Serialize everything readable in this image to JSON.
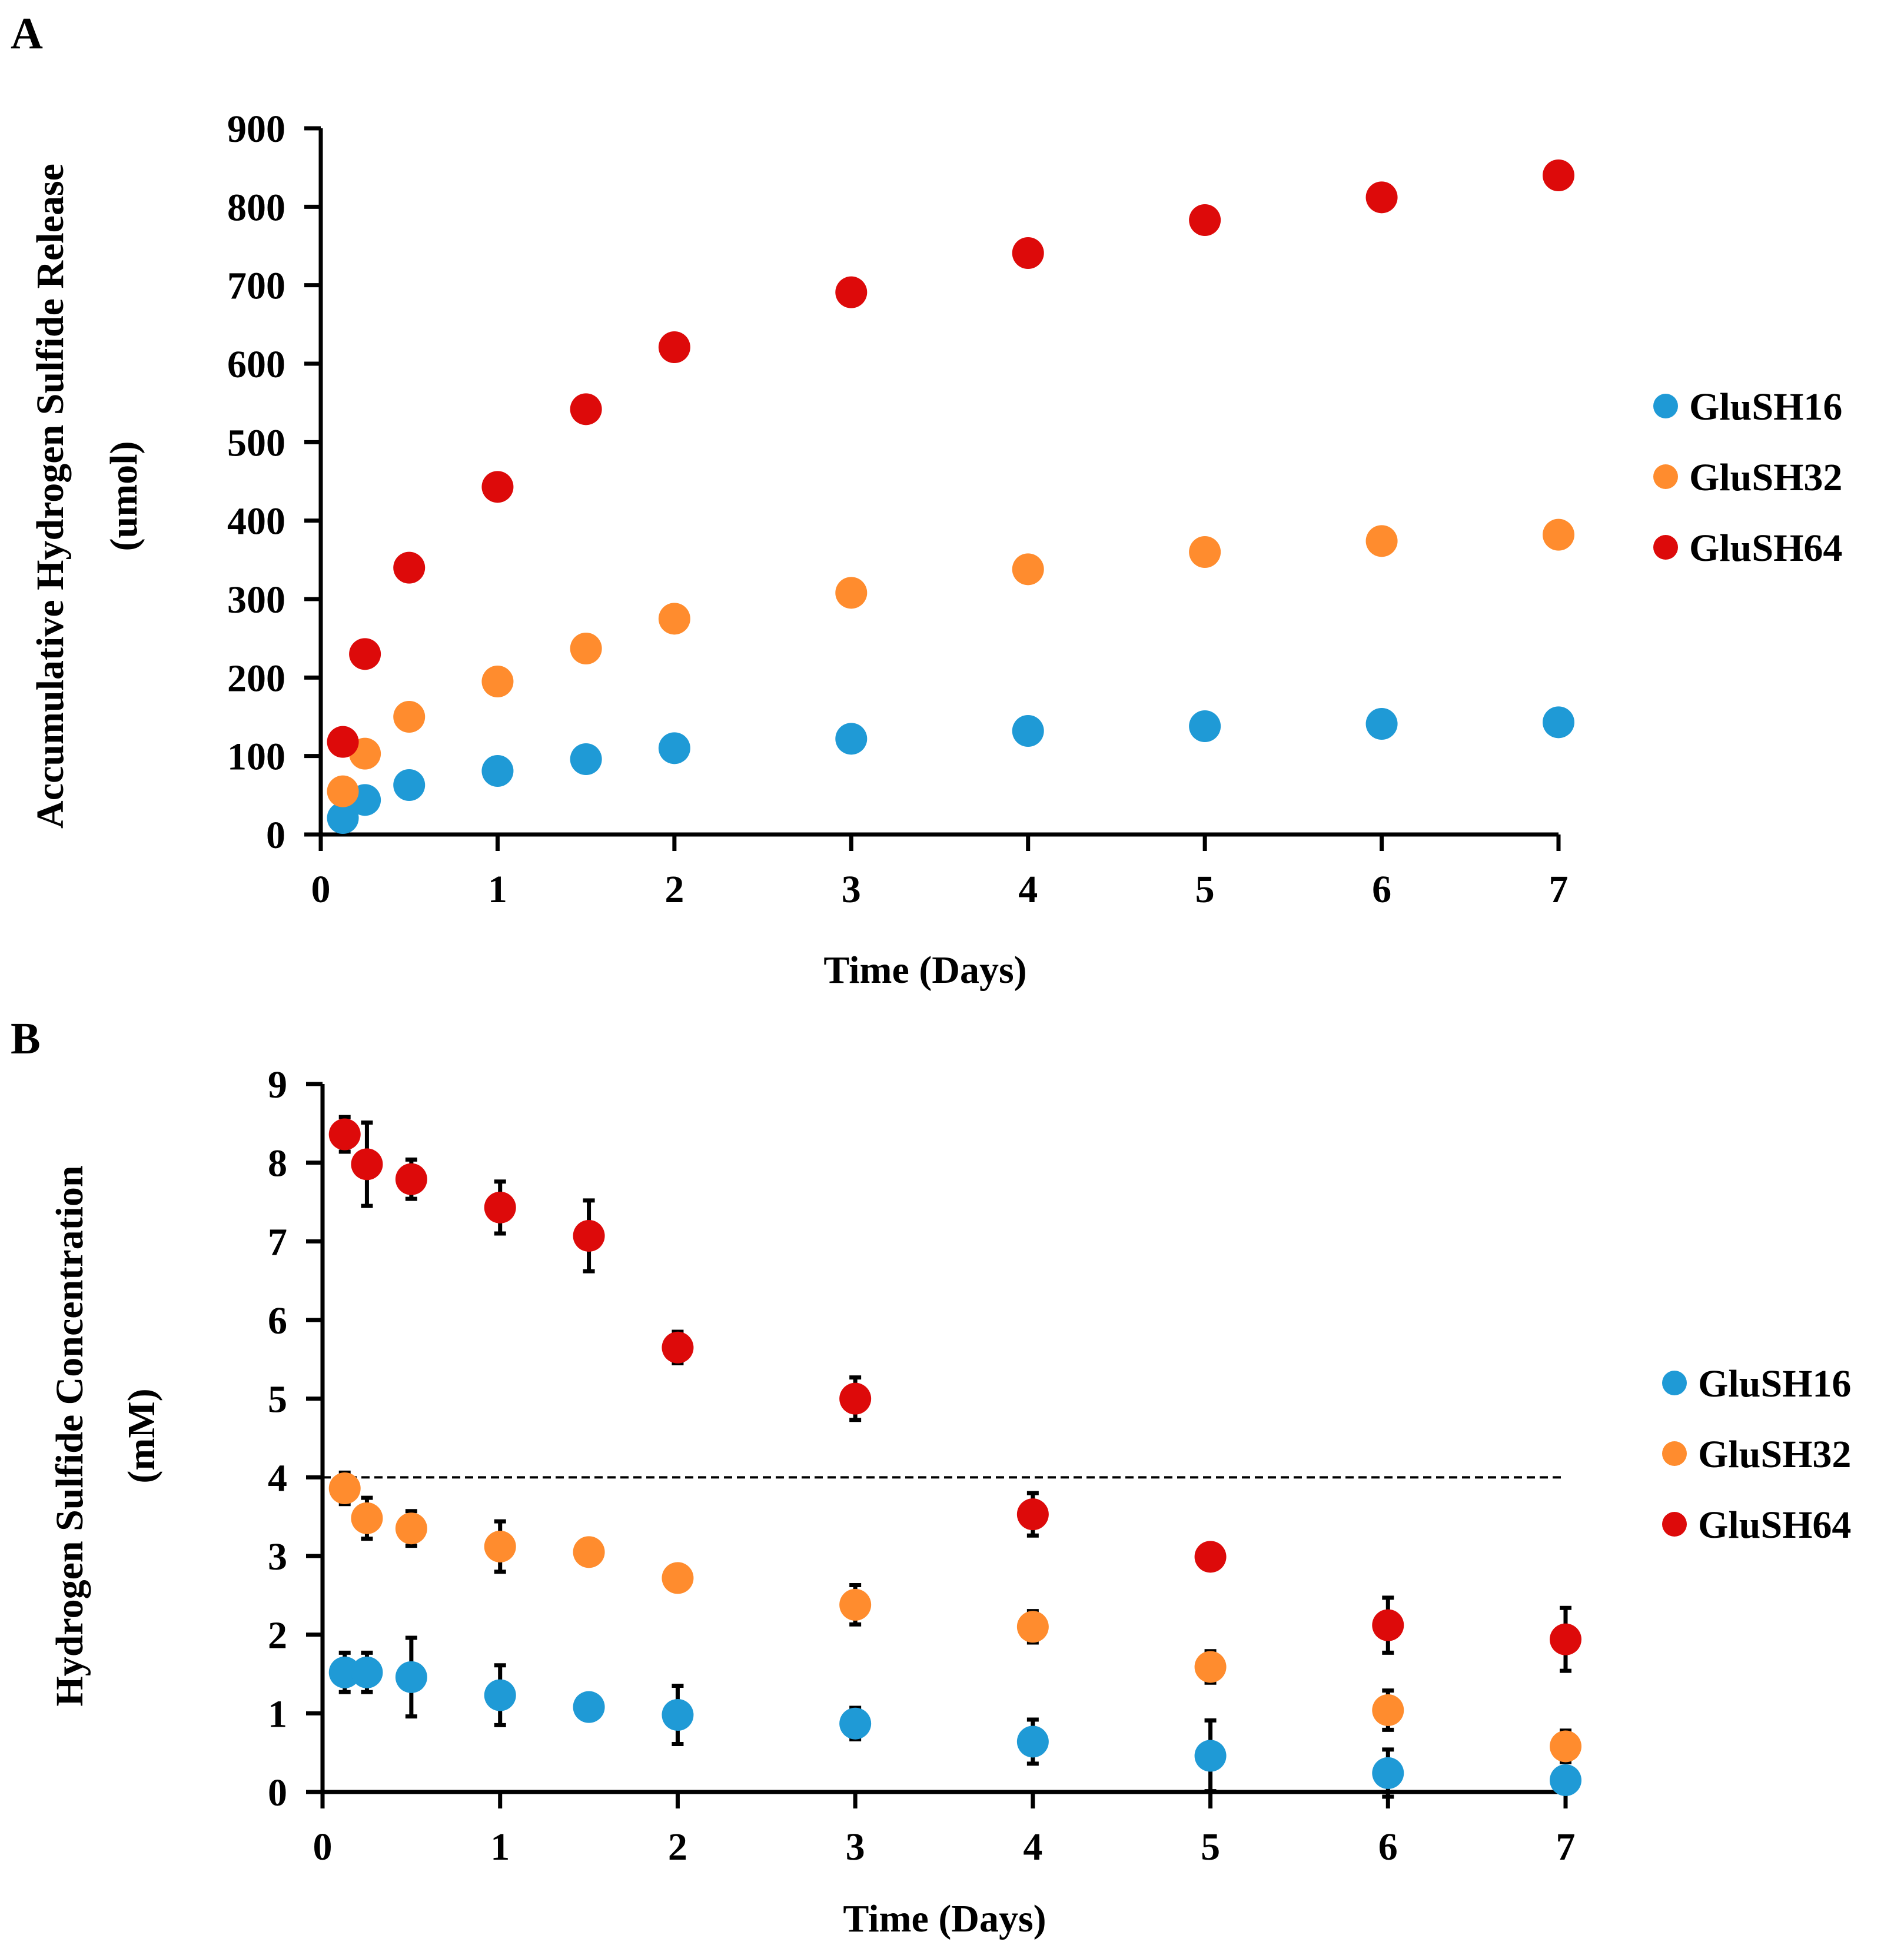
{
  "colors": {
    "GluSH16": "#1f9ad6",
    "GluSH32": "#ff8c2e",
    "GluSH64": "#dd0a0a",
    "axis": "#000000"
  },
  "chart_data": [
    {
      "panel": "A",
      "type": "scatter",
      "xlabel": "Time (Days)",
      "ylabel_lines": [
        "Accumulative Hydrogen Sulfide Release",
        "(umol)"
      ],
      "xlim": [
        0,
        7
      ],
      "ylim": [
        0,
        900
      ],
      "xticks": [
        0,
        1,
        2,
        3,
        4,
        5,
        6,
        7
      ],
      "yticks": [
        0,
        100,
        200,
        300,
        400,
        500,
        600,
        700,
        800,
        900
      ],
      "grid": false,
      "legend_position": "right",
      "legend": [
        "GluSH16",
        "GluSH32",
        "GluSH64"
      ],
      "x": [
        0.125,
        0.25,
        0.5,
        1,
        1.5,
        2,
        3,
        4,
        5,
        6,
        7
      ],
      "series": [
        {
          "name": "GluSH16",
          "values": [
            21,
            44,
            63,
            81,
            96,
            110,
            122,
            132,
            138,
            141,
            143
          ]
        },
        {
          "name": "GluSH32",
          "values": [
            55,
            103,
            150,
            195,
            237,
            275,
            308,
            338,
            360,
            374,
            382
          ]
        },
        {
          "name": "GluSH64",
          "values": [
            118,
            230,
            340,
            443,
            542,
            621,
            691,
            741,
            783,
            812,
            840
          ]
        }
      ]
    },
    {
      "panel": "B",
      "type": "scatter",
      "xlabel": "Time (Days)",
      "ylabel_lines": [
        "Hydrogen Sulfide Concentration",
        "(mM)"
      ],
      "xlim": [
        0,
        7
      ],
      "ylim": [
        0,
        9
      ],
      "xticks": [
        0,
        1,
        2,
        3,
        4,
        5,
        6,
        7
      ],
      "yticks": [
        0,
        1,
        2,
        3,
        4,
        5,
        6,
        7,
        8,
        9
      ],
      "grid": false,
      "legend_position": "right",
      "legend": [
        "GluSH16",
        "GluSH32",
        "GluSH64"
      ],
      "reference_line": {
        "y": 4,
        "style": "dashed"
      },
      "x": [
        0.125,
        0.25,
        0.5,
        1,
        1.5,
        2,
        3,
        4,
        5,
        6,
        7
      ],
      "series": [
        {
          "name": "GluSH16",
          "values": [
            1.52,
            1.52,
            1.46,
            1.23,
            1.08,
            0.98,
            0.87,
            0.64,
            0.46,
            0.24,
            0.15
          ],
          "errors": [
            0.25,
            0.25,
            0.5,
            0.38,
            0.12,
            0.37,
            0.2,
            0.28,
            0.45,
            0.3,
            0.1
          ]
        },
        {
          "name": "GluSH32",
          "values": [
            3.86,
            3.48,
            3.35,
            3.12,
            3.05,
            2.72,
            2.38,
            2.1,
            1.59,
            1.04,
            0.58
          ],
          "errors": [
            0.2,
            0.26,
            0.22,
            0.32,
            0.1,
            0.13,
            0.25,
            0.2,
            0.2,
            0.25,
            0.2
          ]
        },
        {
          "name": "GluSH64",
          "values": [
            8.36,
            7.98,
            7.79,
            7.43,
            7.07,
            5.65,
            5.0,
            3.53,
            2.99,
            2.12,
            1.94
          ],
          "errors": [
            0.22,
            0.53,
            0.25,
            0.33,
            0.45,
            0.2,
            0.27,
            0.27,
            0.12,
            0.35,
            0.4
          ]
        }
      ]
    }
  ]
}
